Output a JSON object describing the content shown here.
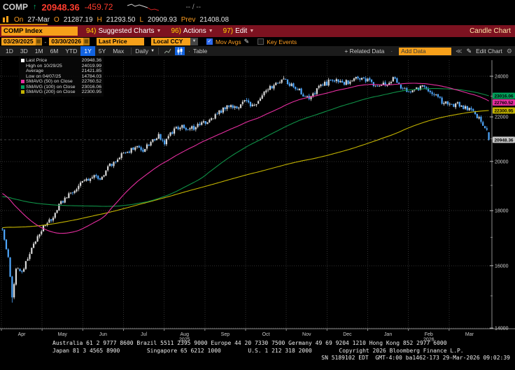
{
  "security": {
    "ticker": "COMP",
    "direction_arrow": "↑",
    "last": "20948.36",
    "change": "-459.72",
    "bid_ask": "-- / --"
  },
  "ohlc_bar": {
    "on_label": "On",
    "date": "27-Mar",
    "o_label": "O",
    "open": "21287.19",
    "h_label": "H",
    "high": "21293.50",
    "l_label": "L",
    "low": "20909.93",
    "prev_label": "Prev",
    "prev": "21408.08"
  },
  "menu_bar": {
    "ticker_input": "COMP Index",
    "items": [
      {
        "num": "94)",
        "label": "Suggested Charts"
      },
      {
        "num": "96)",
        "label": "Actions"
      },
      {
        "num": "97)",
        "label": "Edit"
      }
    ],
    "chart_type": "Candle Chart"
  },
  "filter_bar": {
    "date_from": "03/29/2025",
    "date_sep": "-",
    "date_to": "03/30/2026",
    "price_field": "Last Price",
    "currency": "Local CCY",
    "mov_avgs_label": "Mov Avgs",
    "key_events_label": "Key Events"
  },
  "toolbar": {
    "range_tabs": [
      "1D",
      "3D",
      "1M",
      "6M",
      "YTD",
      "1Y",
      "5Y",
      "Max"
    ],
    "active_tab": "1Y",
    "period": "Daily",
    "table_label": "Table",
    "related_data_label": "+ Related Data",
    "add_data_placeholder": "Add Data",
    "edit_chart_label": "Edit Chart"
  },
  "legend": [
    {
      "marker": "#ffffff",
      "label": "Last Price",
      "value": "20948.36"
    },
    {
      "marker": null,
      "label": "High on 10/29/25",
      "value": "24019.99"
    },
    {
      "marker": null,
      "label": "Average",
      "value": "21421.85"
    },
    {
      "marker": null,
      "label": "Low on 04/07/25",
      "value": "14784.03"
    },
    {
      "marker": "#e62ea0",
      "label": "SMAVG (50) on Close",
      "value": "22760.52"
    },
    {
      "marker": "#00a05a",
      "label": "SMAVG (100) on Close",
      "value": "23016.06"
    },
    {
      "marker": "#c3b300",
      "label": "SMAVG (200) on Close",
      "value": "22300.95"
    }
  ],
  "chart_data": {
    "type": "candlestick",
    "scale": "log",
    "ylim": [
      13800,
      24600
    ],
    "yticks": [
      14000,
      16000,
      18000,
      20000,
      22000,
      24000
    ],
    "minor_yticks": [
      15000,
      17000,
      19000,
      21000,
      23000
    ],
    "x_months": [
      "Apr",
      "May",
      "Jun",
      "Jul",
      "Aug",
      "Sep",
      "Oct",
      "Nov",
      "Dec",
      "Jan",
      "Feb",
      "Mar"
    ],
    "year_labels": [
      {
        "month_index": 4,
        "year": "2025"
      },
      {
        "month_index": 10,
        "year": "2026"
      }
    ],
    "num_days": 250,
    "last_price": 20948.36,
    "ohlc_last": {
      "open": 21287.19,
      "high": 21293.5,
      "low": 20909.93,
      "close": 20948.36,
      "prev_close": 21408.08
    },
    "high_point": {
      "date": "10/29/25",
      "value": 24019.99,
      "day": 144
    },
    "low_point": {
      "date": "04/07/25",
      "value": 14784.03,
      "day": 5
    },
    "average": 21421.85,
    "smavg": {
      "s50": 22760.52,
      "s100": 23016.06,
      "s200": 22300.95
    },
    "axis_tags": [
      {
        "value": 23016.06,
        "color": "#00a05a"
      },
      {
        "value": 22760.52,
        "color": "#e62ea0"
      },
      {
        "value": 22300.95,
        "color": "#c3b300"
      },
      {
        "value": 20948.36,
        "color": "#c8c8c8"
      }
    ],
    "colors": {
      "up": "#d9d9d9",
      "down": "#4fa8ff",
      "sma50": "#e62ea0",
      "sma100": "#0f9147",
      "sma200": "#c3b300",
      "grid": "#323232",
      "axis": "#8c8c8c",
      "tick_label": "#d8d8d8"
    },
    "anchors_visible": [
      [
        0,
        17300
      ],
      [
        3,
        16300
      ],
      [
        5,
        14950
      ],
      [
        7,
        15900
      ],
      [
        10,
        15750
      ],
      [
        14,
        16400
      ],
      [
        18,
        17100
      ],
      [
        21,
        17400
      ],
      [
        25,
        17650
      ],
      [
        30,
        18300
      ],
      [
        34,
        18650
      ],
      [
        38,
        18900
      ],
      [
        42,
        19200
      ],
      [
        46,
        19400
      ],
      [
        50,
        19300
      ],
      [
        55,
        19800
      ],
      [
        60,
        20200
      ],
      [
        63,
        20400
      ],
      [
        68,
        20600
      ],
      [
        72,
        20500
      ],
      [
        76,
        20900
      ],
      [
        80,
        21100
      ],
      [
        83,
        20800
      ],
      [
        87,
        21300
      ],
      [
        91,
        21600
      ],
      [
        95,
        21400
      ],
      [
        99,
        21500
      ],
      [
        104,
        21800
      ],
      [
        108,
        22000
      ],
      [
        112,
        22300
      ],
      [
        116,
        22600
      ],
      [
        120,
        22400
      ],
      [
        125,
        22800
      ],
      [
        128,
        22500
      ],
      [
        132,
        22900
      ],
      [
        136,
        23300
      ],
      [
        140,
        23700
      ],
      [
        144,
        23880
      ],
      [
        146,
        23700
      ],
      [
        150,
        23400
      ],
      [
        154,
        23100
      ],
      [
        158,
        22900
      ],
      [
        162,
        23400
      ],
      [
        165,
        23600
      ],
      [
        167,
        23700
      ],
      [
        171,
        23800
      ],
      [
        175,
        23650
      ],
      [
        179,
        23800
      ],
      [
        183,
        23900
      ],
      [
        188,
        23750
      ],
      [
        192,
        23450
      ],
      [
        196,
        23650
      ],
      [
        200,
        23850
      ],
      [
        204,
        23500
      ],
      [
        208,
        23200
      ],
      [
        212,
        23350
      ],
      [
        216,
        23500
      ],
      [
        220,
        23150
      ],
      [
        224,
        22800
      ],
      [
        229,
        22500
      ],
      [
        233,
        22650
      ],
      [
        237,
        22400
      ],
      [
        241,
        22250
      ],
      [
        244,
        21900
      ],
      [
        246,
        21600
      ],
      [
        248,
        21408.08
      ],
      [
        249,
        20948.36
      ]
    ],
    "anchors_history": [
      [
        -200,
        15200
      ],
      [
        -170,
        15700
      ],
      [
        -140,
        16300
      ],
      [
        -110,
        17000
      ],
      [
        -85,
        17800
      ],
      [
        -60,
        19200
      ],
      [
        -45,
        19800
      ],
      [
        -35,
        19500
      ],
      [
        -25,
        18900
      ],
      [
        -15,
        18100
      ],
      [
        -8,
        17400
      ],
      [
        -1,
        17350
      ]
    ]
  },
  "footer": {
    "line1": "Australia 61 2 9777 8600 Brazil 5511 2395 9000 Europe 44 20 7330 7500 Germany 49 69 9204 1210 Hong Kong 852 2977 6000",
    "line2": "Japan 81 3 4565 8900        Singapore 65 6212 1000        U.S. 1 212 318 2000        Copyright 2026 Bloomberg Finance L.P.",
    "line3": "SN 5189102 EDT  GMT-4:00 ba1462-173 29-Mar-2026 09:02:39"
  }
}
